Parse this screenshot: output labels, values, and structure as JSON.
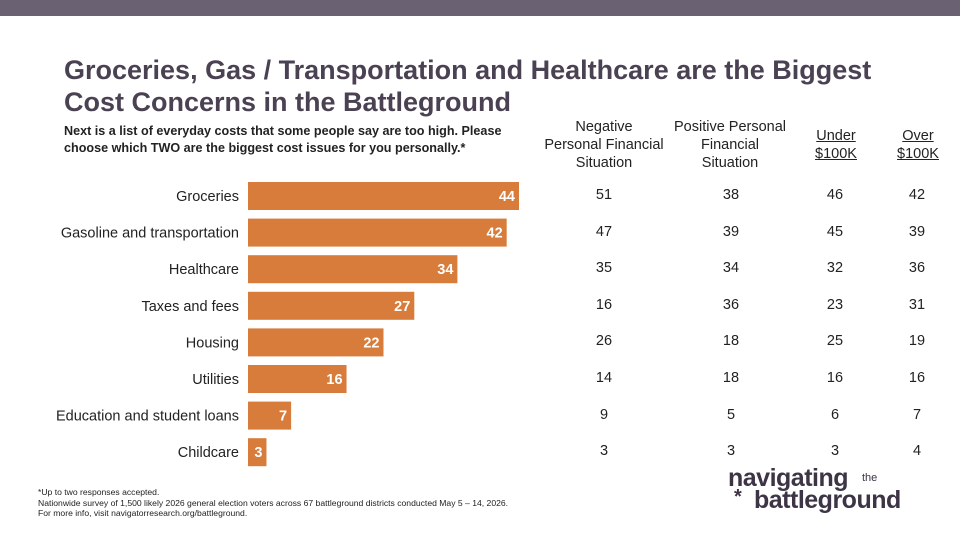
{
  "title": "Groceries, Gas / Transportation and Healthcare are the Biggest Cost Concerns in the Battleground",
  "question": "Next is a list of everyday costs that some people say are too high. Please choose which TWO are the biggest cost issues for you personally.*",
  "columns": [
    {
      "lines": [
        "Negative",
        "Personal Financial",
        "Situation"
      ],
      "underline": false
    },
    {
      "lines": [
        "Positive Personal",
        "Financial",
        "Situation"
      ],
      "underline": false
    },
    {
      "lines": [
        "Under",
        "$100K"
      ],
      "underline": true
    },
    {
      "lines": [
        "Over",
        "$100K"
      ],
      "underline": true
    }
  ],
  "chart_data": {
    "type": "bar",
    "orientation": "horizontal",
    "categories": [
      "Groceries",
      "Gasoline and transportation",
      "Healthcare",
      "Taxes and fees",
      "Housing",
      "Utilities",
      "Education and student loans",
      "Childcare"
    ],
    "values": [
      44,
      42,
      34,
      27,
      22,
      16,
      7,
      3
    ],
    "bar_color": "#d77c3a",
    "table": {
      "rows": [
        [
          51,
          38,
          46,
          42
        ],
        [
          47,
          39,
          45,
          39
        ],
        [
          35,
          34,
          32,
          36
        ],
        [
          16,
          36,
          23,
          31
        ],
        [
          26,
          18,
          25,
          19
        ],
        [
          14,
          18,
          16,
          16
        ],
        [
          9,
          5,
          6,
          7
        ],
        [
          3,
          3,
          3,
          4
        ]
      ]
    }
  },
  "footnotes": [
    "*Up to two responses accepted.",
    "Nationwide survey of 1,500 likely 2026 general election voters across 67 battleground districts conducted May 5 – 14, 2026.",
    "For more info, visit navigatorresearch.org/battleground."
  ],
  "logo": {
    "line1": "navigating",
    "the": "the",
    "line2": "battleground"
  },
  "colors": {
    "top_bar": "#6a6272",
    "title": "#4a4152",
    "bar": "#d77c3a"
  }
}
